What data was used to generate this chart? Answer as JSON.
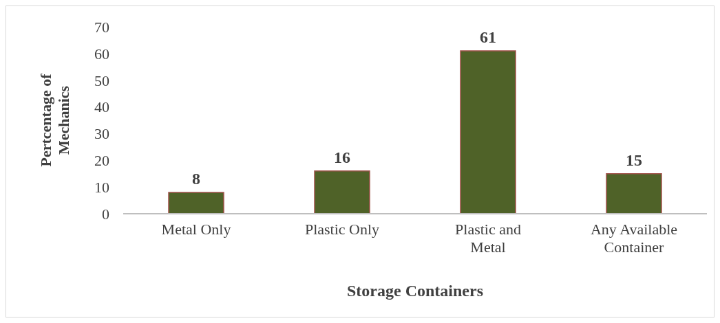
{
  "chart_data": {
    "type": "bar",
    "xlabel": "Storage Containers",
    "ylabel": "Pertcentage of Mechanics",
    "categories": [
      "Metal Only",
      "Plastic Only",
      "Plastic and Metal",
      "Any Available Container"
    ],
    "values": [
      8,
      16,
      61,
      15
    ],
    "color": "#4f6228",
    "ylim": [
      0,
      70
    ],
    "yticks": [
      0,
      10,
      20,
      30,
      40,
      50,
      60,
      70
    ],
    "grid": false,
    "legend": false,
    "data_labels": true
  }
}
